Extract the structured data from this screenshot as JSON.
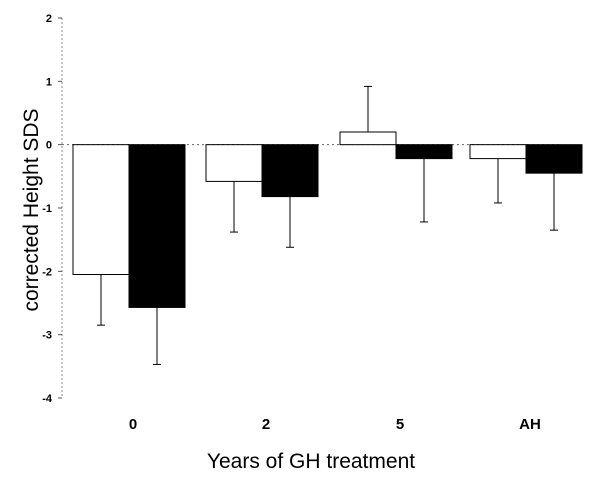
{
  "chart_data": {
    "type": "bar",
    "title": "",
    "xlabel": "Years of GH treatment",
    "ylabel": "corrected Height SDS",
    "categories": [
      "0",
      "2",
      "5",
      "AH"
    ],
    "ylim": [
      -4,
      2
    ],
    "yticks": [
      "2",
      "1",
      "0",
      "-1",
      "-2",
      "-3",
      "-4"
    ],
    "series": [
      {
        "color": "#ffffff",
        "values": [
          -2.05,
          -0.58,
          0.2,
          -0.22
        ],
        "errors": [
          0.8,
          0.8,
          0.72,
          0.7
        ]
      },
      {
        "color": "#000000",
        "values": [
          -2.57,
          -0.82,
          -0.22,
          -0.45
        ],
        "errors": [
          0.9,
          0.8,
          1.0,
          0.9
        ]
      }
    ],
    "error_direction": "away-from-zero",
    "zero_line": "dotted",
    "grid": false,
    "legend": "none"
  }
}
